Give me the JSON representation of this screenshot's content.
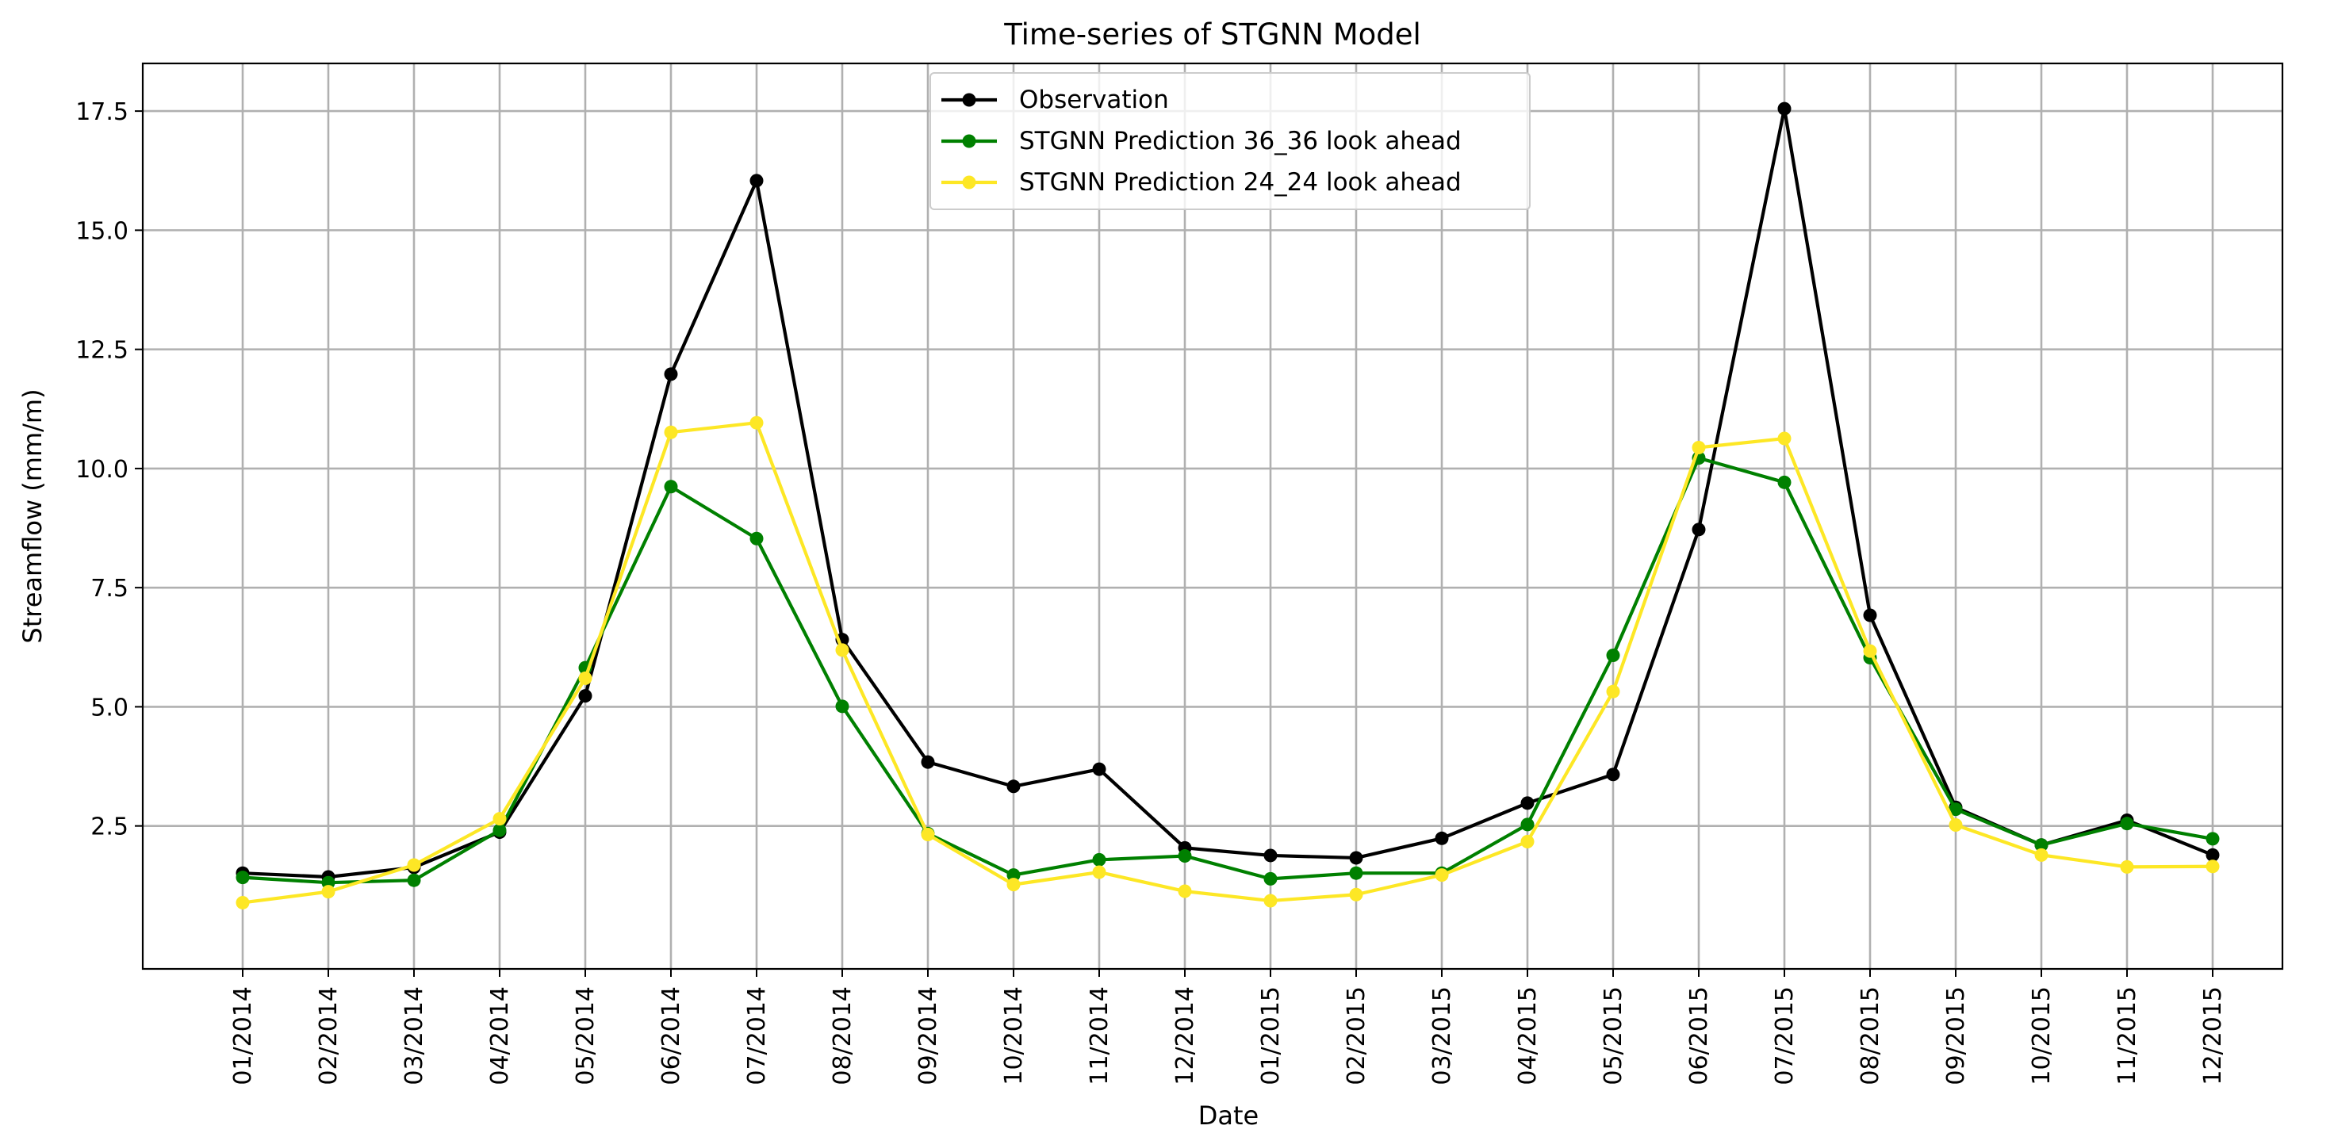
{
  "chart_data": {
    "type": "line",
    "title": "Time-series of STGNN Model",
    "xlabel": "Date",
    "ylabel": "Streamflow (mm/m)",
    "ylim": [
      -0.5,
      18.5
    ],
    "yticks": [
      2.5,
      5.0,
      7.5,
      10.0,
      12.5,
      15.0,
      17.5
    ],
    "ytick_labels": [
      "2.5",
      "5.0",
      "7.5",
      "10.0",
      "12.5",
      "15.0",
      "17.5"
    ],
    "grid": true,
    "legend_position": "top-center",
    "categories": [
      "01/2014",
      "02/2014",
      "03/2014",
      "04/2014",
      "05/2014",
      "06/2014",
      "07/2014",
      "08/2014",
      "09/2014",
      "10/2014",
      "11/2014",
      "12/2014",
      "01/2015",
      "02/2015",
      "03/2015",
      "04/2015",
      "05/2015",
      "06/2015",
      "07/2015",
      "08/2015",
      "09/2015",
      "10/2015",
      "11/2015",
      "12/2015"
    ],
    "series": [
      {
        "name": "Observation",
        "color": "#000000",
        "values": [
          1.51,
          1.43,
          1.63,
          2.37,
          5.23,
          11.98,
          16.04,
          6.41,
          3.84,
          3.33,
          3.69,
          2.04,
          1.88,
          1.83,
          2.24,
          2.98,
          3.58,
          8.72,
          17.55,
          6.92,
          2.89,
          2.1,
          2.62,
          1.89
        ]
      },
      {
        "name": "STGNN Prediction 36_36 look ahead",
        "color": "#008000",
        "values": [
          1.42,
          1.31,
          1.36,
          2.41,
          5.82,
          9.62,
          8.53,
          5.01,
          2.34,
          1.47,
          1.79,
          1.87,
          1.39,
          1.51,
          1.51,
          2.53,
          6.08,
          10.22,
          9.71,
          6.03,
          2.85,
          2.1,
          2.55,
          2.23
        ]
      },
      {
        "name": "STGNN Prediction 24_24 look ahead",
        "color": "#fde725",
        "values": [
          0.89,
          1.12,
          1.68,
          2.65,
          5.6,
          10.76,
          10.96,
          6.19,
          2.32,
          1.27,
          1.53,
          1.13,
          0.93,
          1.06,
          1.47,
          2.17,
          5.32,
          10.44,
          10.63,
          6.17,
          2.52,
          1.89,
          1.64,
          1.65
        ]
      }
    ]
  }
}
